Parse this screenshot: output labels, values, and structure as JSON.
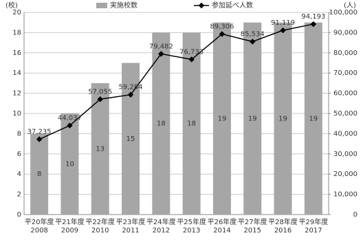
{
  "chart_data": {
    "type": "bar-line",
    "y_unit": "(校)",
    "y2_unit": "(人)",
    "categories": [
      [
        "平20年度",
        "2008"
      ],
      [
        "平21年度",
        "2009"
      ],
      [
        "平22年度",
        "2010"
      ],
      [
        "平23年度",
        "2011"
      ],
      [
        "平24年度",
        "2012"
      ],
      [
        "平25年度",
        "2013"
      ],
      [
        "平26年度",
        "2014"
      ],
      [
        "平27年度",
        "2015"
      ],
      [
        "平28年度",
        "2016"
      ],
      [
        "平29年度",
        "2017"
      ]
    ],
    "series": [
      {
        "name": "実施校数",
        "type": "bar",
        "color": "#a6a6a6",
        "values": [
          8,
          10,
          13,
          15,
          18,
          18,
          19,
          19,
          19,
          19
        ]
      },
      {
        "name": "参加延べ人数",
        "type": "line",
        "axis": "y2",
        "color": "#000000",
        "values": [
          37235,
          44037,
          57055,
          59284,
          79482,
          76733,
          89306,
          85534,
          91119,
          94193
        ],
        "value_labels": [
          "37,235",
          "44,037",
          "57,055",
          "59,284",
          "79,482",
          "76,733",
          "89,306",
          "85,534",
          "91,119",
          "94,193"
        ]
      }
    ],
    "ylim": [
      0,
      20
    ],
    "yticks": [
      0,
      2,
      4,
      6,
      8,
      10,
      12,
      14,
      16,
      18,
      20
    ],
    "y2lim": [
      0,
      100000
    ],
    "y2ticks": [
      0,
      {
        "value": 10000,
        "label": "10,000"
      },
      {
        "value": 20000,
        "label": "20,000"
      },
      {
        "value": 30000,
        "label": "30,000"
      },
      {
        "value": 40000,
        "label": "40,000"
      },
      {
        "value": 50000,
        "label": "50,000"
      },
      {
        "value": 60000,
        "label": "60,000"
      },
      {
        "value": 70000,
        "label": "70,000"
      },
      {
        "value": 80000,
        "label": "80,000"
      },
      {
        "value": 90000,
        "label": "90,000"
      },
      {
        "value": 100000,
        "label": "100,000"
      }
    ],
    "grid": true
  }
}
